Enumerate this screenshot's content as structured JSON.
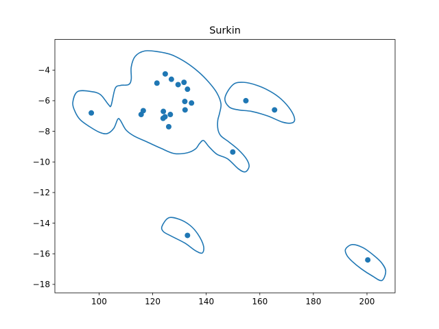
{
  "chart_data": {
    "type": "scatter",
    "title": "Surkin",
    "xlabel": "",
    "ylabel": "",
    "xlim": [
      83.5,
      210.5
    ],
    "ylim": [
      -18.55,
      -2.0
    ],
    "xticks": [
      100,
      120,
      140,
      160,
      180,
      200
    ],
    "yticks": [
      -4,
      -6,
      -8,
      -10,
      -12,
      -14,
      -16,
      -18
    ],
    "xtick_labels": [
      "100",
      "120",
      "140",
      "160",
      "180",
      "200"
    ],
    "ytick_labels": [
      "−4",
      "−6",
      "−8",
      "−10",
      "−12",
      "−14",
      "−16",
      "−18"
    ],
    "grid": false,
    "color": "#1f77b4",
    "points": [
      {
        "x": 97.1,
        "y": -6.8
      },
      {
        "x": 115.7,
        "y": -6.9
      },
      {
        "x": 116.5,
        "y": -6.65
      },
      {
        "x": 121.6,
        "y": -4.85
      },
      {
        "x": 123.9,
        "y": -7.15
      },
      {
        "x": 124.0,
        "y": -6.7
      },
      {
        "x": 124.6,
        "y": -7.05
      },
      {
        "x": 124.7,
        "y": -4.25
      },
      {
        "x": 126.0,
        "y": -7.7
      },
      {
        "x": 126.6,
        "y": -6.9
      },
      {
        "x": 127.0,
        "y": -4.6
      },
      {
        "x": 129.5,
        "y": -4.95
      },
      {
        "x": 131.7,
        "y": -4.8
      },
      {
        "x": 132.0,
        "y": -6.05
      },
      {
        "x": 132.1,
        "y": -6.6
      },
      {
        "x": 133.0,
        "y": -5.25
      },
      {
        "x": 134.5,
        "y": -6.15
      },
      {
        "x": 149.9,
        "y": -9.35
      },
      {
        "x": 154.8,
        "y": -6.0
      },
      {
        "x": 165.5,
        "y": -6.6
      },
      {
        "x": 133.0,
        "y": -14.8
      },
      {
        "x": 200.3,
        "y": -16.4
      }
    ],
    "contours": [
      [
        [
          92.0,
          -5.4
        ],
        [
          97.0,
          -5.4
        ],
        [
          100.5,
          -5.6
        ],
        [
          103.5,
          -6.25
        ],
        [
          104.5,
          -6.3
        ],
        [
          106.0,
          -5.2
        ],
        [
          108.0,
          -5.0
        ],
        [
          111.0,
          -4.95
        ],
        [
          112.0,
          -4.6
        ],
        [
          112.0,
          -3.8
        ],
        [
          113.5,
          -3.1
        ],
        [
          117.0,
          -2.75
        ],
        [
          122.0,
          -2.8
        ],
        [
          127.0,
          -3.0
        ],
        [
          132.0,
          -3.45
        ],
        [
          137.0,
          -4.1
        ],
        [
          141.0,
          -4.8
        ],
        [
          144.0,
          -5.5
        ],
        [
          145.5,
          -6.2
        ],
        [
          145.0,
          -6.8
        ],
        [
          144.3,
          -7.3
        ],
        [
          144.4,
          -7.9
        ],
        [
          145.5,
          -8.3
        ],
        [
          148.5,
          -8.7
        ],
        [
          152.0,
          -9.2
        ],
        [
          155.0,
          -9.8
        ],
        [
          156.0,
          -10.3
        ],
        [
          154.5,
          -10.65
        ],
        [
          152.0,
          -10.45
        ],
        [
          148.0,
          -9.8
        ],
        [
          144.0,
          -9.5
        ],
        [
          141.0,
          -9.0
        ],
        [
          139.0,
          -8.6
        ],
        [
          137.5,
          -8.8
        ],
        [
          136.0,
          -9.15
        ],
        [
          133.0,
          -9.4
        ],
        [
          128.0,
          -9.45
        ],
        [
          123.0,
          -9.1
        ],
        [
          118.0,
          -8.7
        ],
        [
          113.0,
          -8.3
        ],
        [
          110.0,
          -7.9
        ],
        [
          108.0,
          -7.3
        ],
        [
          107.0,
          -7.2
        ],
        [
          105.5,
          -7.8
        ],
        [
          103.0,
          -8.15
        ],
        [
          100.0,
          -8.05
        ],
        [
          96.5,
          -7.7
        ],
        [
          93.0,
          -7.25
        ],
        [
          91.0,
          -6.7
        ],
        [
          90.2,
          -6.1
        ],
        [
          92.0,
          -5.4
        ]
      ],
      [
        [
          147.0,
          -5.8
        ],
        [
          150.0,
          -4.95
        ],
        [
          154.0,
          -4.8
        ],
        [
          159.0,
          -5.0
        ],
        [
          164.0,
          -5.4
        ],
        [
          168.0,
          -5.9
        ],
        [
          171.5,
          -6.6
        ],
        [
          173.0,
          -7.2
        ],
        [
          172.0,
          -7.45
        ],
        [
          168.5,
          -7.4
        ],
        [
          163.0,
          -7.0
        ],
        [
          157.0,
          -6.7
        ],
        [
          152.0,
          -6.6
        ],
        [
          148.5,
          -6.4
        ],
        [
          147.0,
          -5.8
        ]
      ],
      [
        [
          123.5,
          -14.2
        ],
        [
          126.0,
          -13.65
        ],
        [
          130.0,
          -13.75
        ],
        [
          134.0,
          -14.15
        ],
        [
          137.0,
          -14.75
        ],
        [
          139.0,
          -15.5
        ],
        [
          138.5,
          -15.95
        ],
        [
          136.0,
          -15.8
        ],
        [
          132.0,
          -15.3
        ],
        [
          127.0,
          -14.85
        ],
        [
          124.0,
          -14.55
        ],
        [
          123.5,
          -14.2
        ]
      ],
      [
        [
          192.0,
          -15.7
        ],
        [
          194.5,
          -15.4
        ],
        [
          198.5,
          -15.6
        ],
        [
          202.5,
          -16.1
        ],
        [
          205.5,
          -16.6
        ],
        [
          207.0,
          -17.15
        ],
        [
          205.5,
          -17.75
        ],
        [
          202.0,
          -17.45
        ],
        [
          198.0,
          -17.0
        ],
        [
          194.5,
          -16.5
        ],
        [
          192.5,
          -16.1
        ],
        [
          192.0,
          -15.7
        ]
      ]
    ]
  }
}
